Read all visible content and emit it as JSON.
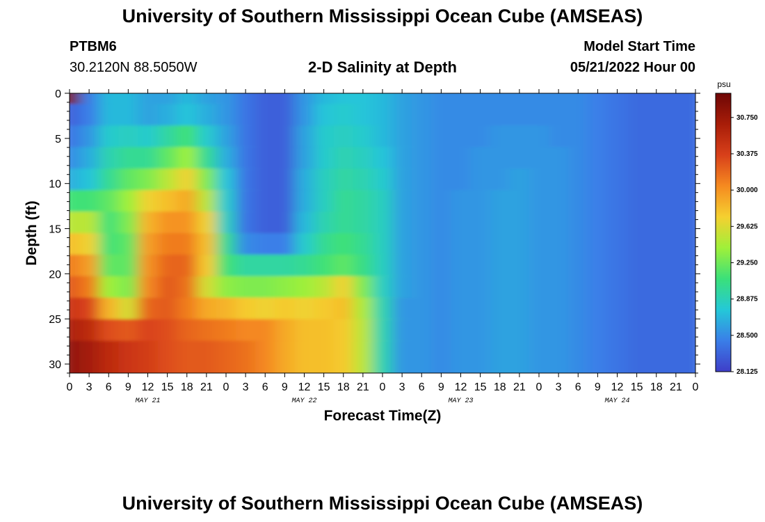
{
  "header": {
    "title": "University of Southern Mississippi Ocean Cube (AMSEAS)",
    "station": "PTBM6",
    "coords": "30.2120N  88.5050W",
    "subtitle": "2-D Salinity at Depth",
    "model_start_label": "Model Start Time",
    "model_start_value": "05/21/2022 Hour 00"
  },
  "footer": {
    "title": "University of Southern Mississippi Ocean Cube (AMSEAS)"
  },
  "chart_data": {
    "type": "heatmap",
    "title": "2-D Salinity at Depth",
    "xlabel": "Forecast Time(Z)",
    "ylabel": "Depth (ft)",
    "x_hours": [
      0,
      96
    ],
    "x_tick_labels": [
      "0",
      "3",
      "6",
      "9",
      "12",
      "15",
      "18",
      "21",
      "0",
      "3",
      "6",
      "9",
      "12",
      "15",
      "18",
      "21",
      "0",
      "3",
      "6",
      "9",
      "12",
      "15",
      "18",
      "21",
      "0",
      "3",
      "6",
      "9",
      "12",
      "15",
      "18",
      "21",
      "0"
    ],
    "date_labels": [
      "MAY 21",
      "MAY 22",
      "MAY 23",
      "MAY 24"
    ],
    "y_ticks": [
      0,
      5,
      10,
      15,
      20,
      25,
      30
    ],
    "ylim": [
      0,
      31
    ],
    "colorbar": {
      "unit": "psu",
      "min": 28.125,
      "max": 31.0,
      "tick_labels": [
        "30.750",
        "30.375",
        "30.000",
        "29.625",
        "29.250",
        "28.875",
        "28.500",
        "28.125"
      ],
      "tick_values": [
        30.75,
        30.375,
        30.0,
        29.625,
        29.25,
        28.875,
        28.5,
        28.125
      ]
    },
    "colormap": [
      "#3f3ec8",
      "#3a7ee8",
      "#24c8d8",
      "#3ae07a",
      "#9ff03a",
      "#f5d030",
      "#f58a20",
      "#d8401a",
      "#a81d08",
      "#6e0606"
    ],
    "salinity_psu": [
      [
        30.95,
        28.45,
        28.7,
        28.7,
        28.6,
        28.6,
        28.7,
        28.6,
        28.55,
        28.4,
        28.3,
        28.3,
        28.55,
        28.7,
        28.75,
        28.75,
        28.7,
        28.6,
        28.55,
        28.5,
        28.5,
        28.5,
        28.5,
        28.5,
        28.5,
        28.5,
        28.5,
        28.45,
        28.4,
        28.35,
        28.35,
        28.35
      ],
      [
        28.3,
        28.45,
        28.7,
        28.7,
        28.6,
        28.65,
        28.75,
        28.65,
        28.55,
        28.4,
        28.3,
        28.3,
        28.55,
        28.75,
        28.8,
        28.75,
        28.7,
        28.6,
        28.55,
        28.5,
        28.5,
        28.5,
        28.5,
        28.5,
        28.5,
        28.5,
        28.5,
        28.45,
        28.4,
        28.35,
        28.35,
        28.35
      ],
      [
        28.4,
        28.55,
        28.8,
        28.85,
        28.8,
        28.95,
        29.1,
        28.8,
        28.6,
        28.4,
        28.3,
        28.3,
        28.6,
        28.8,
        28.85,
        28.8,
        28.7,
        28.6,
        28.55,
        28.5,
        28.5,
        28.5,
        28.55,
        28.55,
        28.55,
        28.5,
        28.5,
        28.45,
        28.4,
        28.35,
        28.35,
        28.35
      ],
      [
        28.5,
        28.65,
        28.9,
        29.0,
        29.0,
        29.2,
        29.4,
        29.0,
        28.65,
        28.4,
        28.3,
        28.3,
        28.6,
        28.8,
        28.9,
        28.85,
        28.75,
        28.6,
        28.55,
        28.5,
        28.5,
        28.55,
        28.55,
        28.55,
        28.55,
        28.55,
        28.5,
        28.45,
        28.4,
        28.35,
        28.35,
        28.35
      ],
      [
        28.65,
        28.75,
        29.0,
        29.2,
        29.3,
        29.5,
        29.7,
        29.3,
        28.75,
        28.4,
        28.3,
        28.3,
        28.65,
        28.85,
        28.95,
        28.9,
        28.8,
        28.6,
        28.55,
        28.5,
        28.5,
        28.55,
        28.55,
        28.6,
        28.55,
        28.55,
        28.5,
        28.45,
        28.4,
        28.35,
        28.35,
        28.35
      ],
      [
        29.1,
        29.1,
        29.2,
        29.4,
        29.7,
        29.8,
        29.9,
        29.5,
        28.8,
        28.4,
        28.3,
        28.3,
        28.65,
        28.85,
        29.0,
        28.95,
        28.85,
        28.6,
        28.55,
        28.5,
        28.55,
        28.55,
        28.6,
        28.6,
        28.55,
        28.55,
        28.5,
        28.45,
        28.4,
        28.35,
        28.35,
        28.35
      ],
      [
        29.5,
        29.5,
        29.1,
        29.3,
        29.85,
        30.0,
        30.0,
        29.7,
        28.85,
        28.4,
        28.3,
        28.3,
        28.7,
        28.9,
        29.0,
        28.95,
        28.85,
        28.6,
        28.55,
        28.5,
        28.55,
        28.55,
        28.6,
        28.6,
        28.55,
        28.55,
        28.5,
        28.45,
        28.4,
        28.35,
        28.35,
        28.35
      ],
      [
        29.8,
        29.7,
        29.1,
        29.2,
        29.95,
        30.1,
        30.1,
        29.8,
        29.0,
        28.5,
        28.45,
        28.45,
        28.8,
        29.0,
        29.1,
        29.0,
        28.85,
        28.6,
        28.55,
        28.5,
        28.55,
        28.55,
        28.6,
        28.6,
        28.55,
        28.55,
        28.5,
        28.45,
        28.4,
        28.35,
        28.35,
        28.35
      ],
      [
        30.1,
        29.95,
        29.2,
        29.2,
        30.0,
        30.2,
        30.2,
        29.75,
        29.1,
        28.95,
        28.95,
        28.95,
        29.0,
        29.1,
        29.2,
        29.05,
        28.85,
        28.6,
        28.55,
        28.5,
        28.55,
        28.55,
        28.6,
        28.6,
        28.55,
        28.55,
        28.5,
        28.45,
        28.4,
        28.35,
        28.35,
        28.35
      ],
      [
        30.25,
        30.1,
        29.4,
        29.3,
        30.05,
        30.25,
        30.15,
        29.6,
        29.35,
        29.3,
        29.3,
        29.35,
        29.4,
        29.5,
        29.7,
        29.3,
        28.85,
        28.6,
        28.55,
        28.5,
        28.55,
        28.55,
        28.6,
        28.6,
        28.55,
        28.55,
        28.5,
        28.45,
        28.4,
        28.35,
        28.35,
        28.35
      ],
      [
        30.45,
        30.35,
        29.85,
        29.6,
        30.2,
        30.25,
        30.1,
        29.9,
        29.85,
        29.75,
        29.7,
        29.75,
        29.7,
        29.75,
        29.8,
        29.45,
        28.9,
        28.55,
        28.55,
        28.5,
        28.55,
        28.55,
        28.6,
        28.6,
        28.55,
        28.55,
        28.5,
        28.45,
        28.4,
        28.35,
        28.35,
        28.35
      ],
      [
        30.65,
        30.55,
        30.3,
        30.25,
        30.35,
        30.3,
        30.2,
        30.15,
        30.1,
        30.05,
        30.05,
        29.9,
        29.8,
        29.8,
        29.75,
        29.5,
        28.9,
        28.55,
        28.55,
        28.5,
        28.55,
        28.55,
        28.6,
        28.6,
        28.55,
        28.55,
        28.5,
        28.45,
        28.4,
        28.35,
        28.35,
        28.35
      ],
      [
        30.8,
        30.7,
        30.55,
        30.45,
        30.4,
        30.3,
        30.25,
        30.25,
        30.2,
        30.15,
        30.05,
        29.9,
        29.8,
        29.8,
        29.75,
        29.5,
        28.9,
        28.55,
        28.55,
        28.5,
        28.55,
        28.55,
        28.6,
        28.6,
        28.55,
        28.55,
        28.5,
        28.45,
        28.4,
        28.35,
        28.35,
        28.35
      ]
    ]
  }
}
